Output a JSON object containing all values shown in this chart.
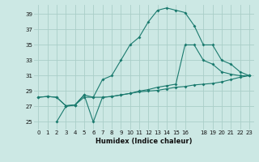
{
  "xlabel": "Humidex (Indice chaleur)",
  "bg_color": "#cce8e4",
  "grid_color": "#aacec8",
  "line_color": "#1a7a6e",
  "xlim": [
    -0.5,
    23.5
  ],
  "ylim": [
    24.0,
    40.2
  ],
  "yticks": [
    25,
    27,
    29,
    31,
    33,
    35,
    37,
    39
  ],
  "xticks": [
    0,
    1,
    2,
    3,
    4,
    5,
    6,
    7,
    8,
    9,
    10,
    11,
    12,
    13,
    14,
    15,
    16,
    18,
    19,
    20,
    21,
    22,
    23
  ],
  "line1_x": [
    0,
    1,
    2,
    3,
    4,
    5,
    6,
    7,
    8,
    9,
    10,
    11,
    12,
    13,
    14,
    15,
    16,
    17,
    18,
    19,
    20,
    21,
    22,
    23
  ],
  "line1_y": [
    28.2,
    28.3,
    28.2,
    27.1,
    27.2,
    28.2,
    28.2,
    28.2,
    28.3,
    28.5,
    28.7,
    28.9,
    29.0,
    29.1,
    29.3,
    29.5,
    29.6,
    29.8,
    29.9,
    30.0,
    30.2,
    30.5,
    30.8,
    31.0
  ],
  "line2_x": [
    0,
    1,
    2,
    3,
    4,
    5,
    6,
    7,
    8,
    9,
    10,
    11,
    12,
    13,
    14,
    15,
    16,
    17,
    18,
    19,
    20,
    21,
    22,
    23
  ],
  "line2_y": [
    28.2,
    28.3,
    28.2,
    27.1,
    27.2,
    28.5,
    25.0,
    28.2,
    28.3,
    28.5,
    28.7,
    29.0,
    29.2,
    29.5,
    29.7,
    29.9,
    35.0,
    35.0,
    33.0,
    32.5,
    31.5,
    31.2,
    31.0,
    31.0
  ],
  "line3_x": [
    2,
    3,
    4,
    5,
    6,
    7,
    8,
    9,
    10,
    11,
    12,
    13,
    14,
    15,
    16,
    17,
    18,
    19,
    20,
    21,
    22,
    23
  ],
  "line3_y": [
    25.0,
    27.0,
    27.2,
    28.5,
    28.2,
    30.5,
    31.0,
    33.0,
    35.0,
    36.0,
    38.0,
    39.5,
    39.8,
    39.5,
    39.2,
    37.5,
    35.0,
    35.0,
    33.0,
    32.5,
    31.5,
    31.0
  ]
}
